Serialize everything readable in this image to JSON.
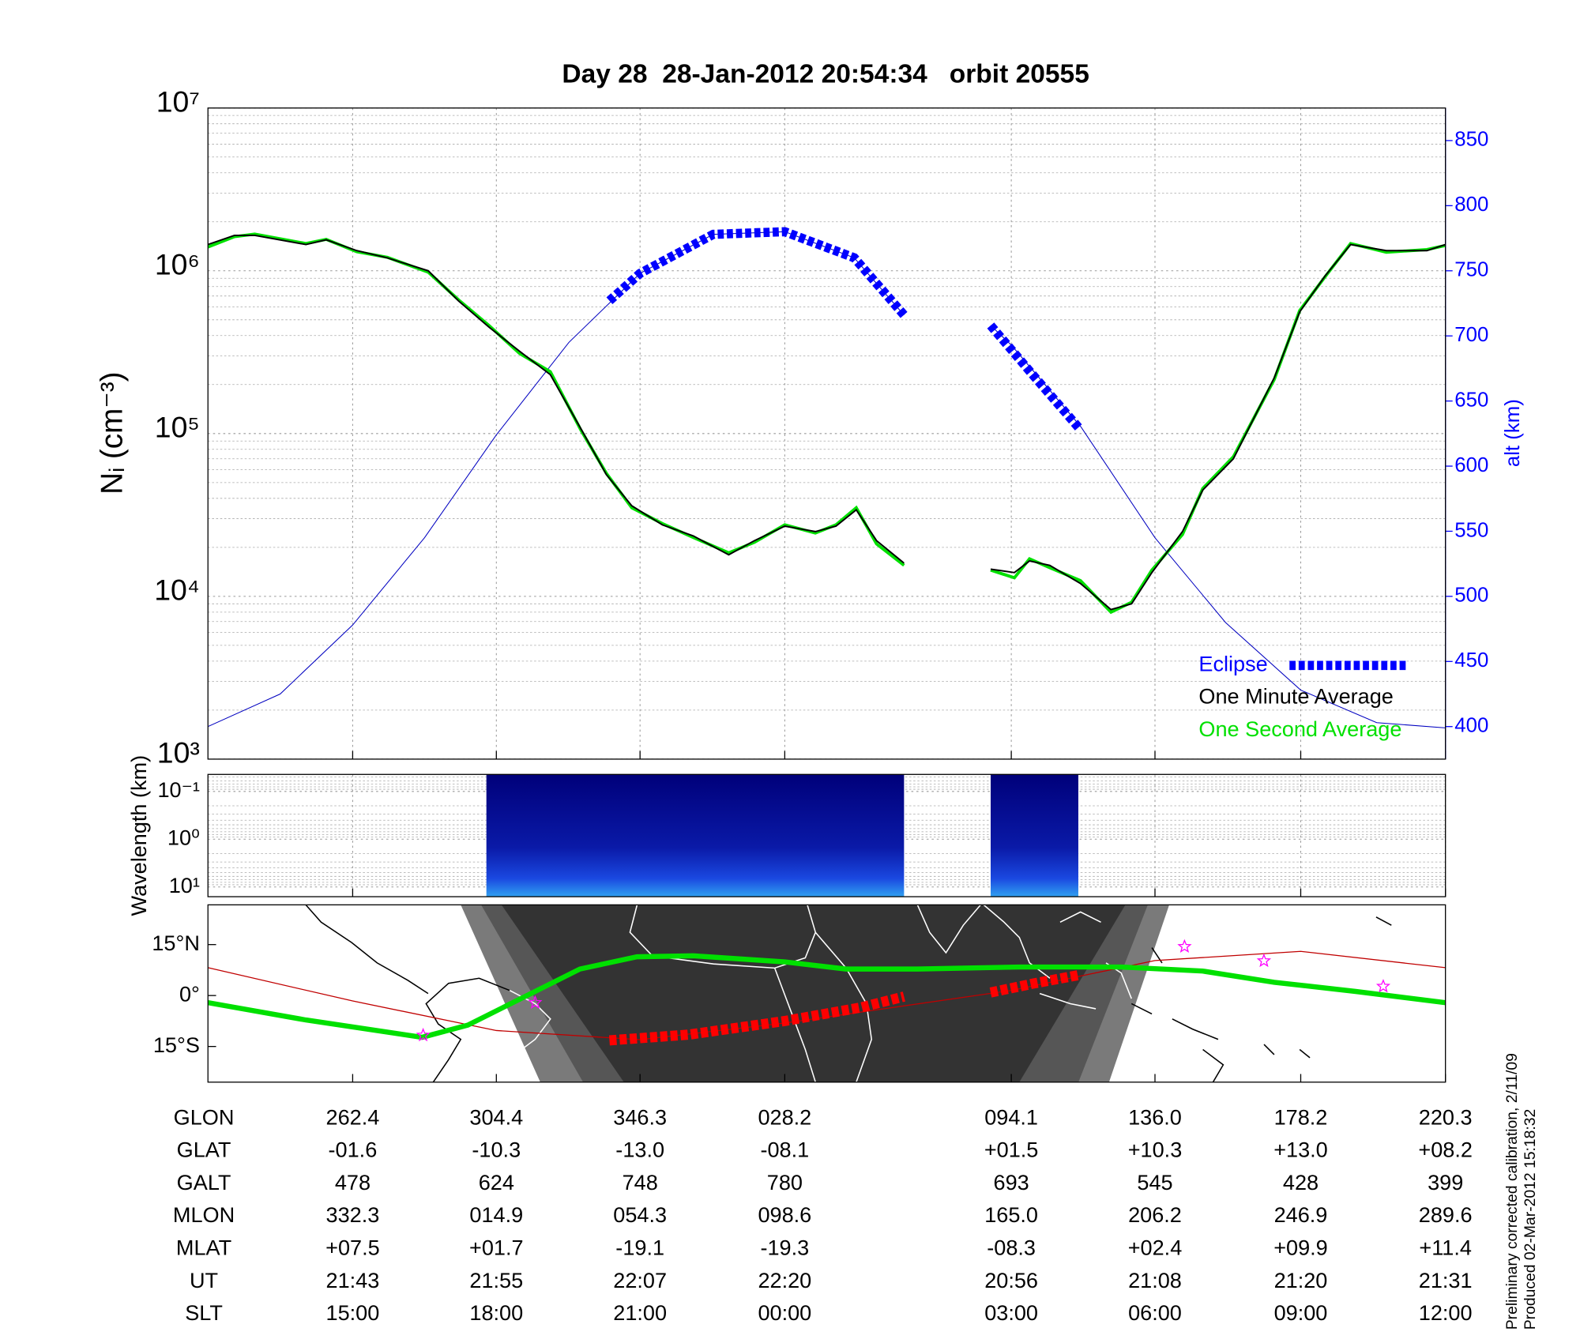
{
  "chart_data": [
    {
      "type": "line",
      "title": "Day 28  28-Jan-2012 20:54:34   orbit 20555",
      "ylabel": "Nᵢ (cm⁻³)",
      "y2label": "alt (km)",
      "xlim": [
        0,
        360
      ],
      "xticks": [
        42.1,
        83.9,
        125.7,
        167.8,
        233.7,
        275.5,
        317.9,
        360
      ],
      "ylim": [
        1000,
        10000000
      ],
      "yscale": "log",
      "yticks": [
        {
          "value": 1000,
          "label": "10³"
        },
        {
          "value": 10000,
          "label": "10⁴"
        },
        {
          "value": 100000,
          "label": "10⁵"
        },
        {
          "value": 1000000,
          "label": "10⁶"
        },
        {
          "value": 10000000,
          "label": "10⁷"
        }
      ],
      "y2lim": [
        375,
        875
      ],
      "y2ticks": [
        400,
        450,
        500,
        550,
        600,
        650,
        700,
        750,
        800,
        850
      ],
      "y2color": "#0000ff",
      "grid": true,
      "legend": "lower right",
      "series": [
        {
          "name": "Eclipse",
          "color": "#0000ff",
          "axis": "y2",
          "style": "dashed",
          "x": [
            116.8,
            125.7,
            147,
            167.8,
            188,
            202.5,
            215,
            227.7,
            240,
            253.8
          ],
          "values": [
            727,
            748,
            778,
            780,
            760,
            716,
            null,
            708,
            670,
            628
          ]
        },
        {
          "name": "One Minute Average",
          "color": "#000000",
          "x": [
            0,
            7.7,
            13.6,
            28.5,
            34.4,
            43.3,
            52.2,
            64.1,
            73,
            81.8,
            90.7,
            99.6,
            108.5,
            115.9,
            123.3,
            132.2,
            141.2,
            151.5,
            159,
            167.8,
            176.7,
            182.7,
            188.6,
            194.5,
            202.5,
            215,
            227.7,
            234.6,
            239,
            244.9,
            253.8,
            262.7,
            268.7,
            274.6,
            283.5,
            289.4,
            298.3,
            310.2,
            317.6,
            325,
            332.4,
            342.8,
            354.6,
            360
          ],
          "values": [
            1450000,
            1650000,
            1650000,
            1450000,
            1550000,
            1330000,
            1200000,
            1000000,
            650000,
            450000,
            320000,
            230000,
            107000,
            56000,
            36000,
            27500,
            23500,
            18000,
            22000,
            27000,
            25000,
            27000,
            34000,
            22000,
            16000,
            null,
            14700,
            14000,
            16500,
            15500,
            12000,
            8300,
            9000,
            14000,
            25000,
            45000,
            70000,
            220000,
            560000,
            930000,
            1450000,
            1330000,
            1330000,
            1450000
          ]
        },
        {
          "name": "One Second Average",
          "color": "#00e000",
          "x": [
            0,
            7.7,
            13.6,
            28.5,
            34.4,
            43.3,
            52.2,
            64.1,
            73,
            81.8,
            90.7,
            99.6,
            108.5,
            115.9,
            123.3,
            132.2,
            141.2,
            151.5,
            159,
            167.8,
            176.7,
            182.7,
            188.6,
            194.5,
            202.5,
            215,
            227.7,
            234.6,
            239,
            244.9,
            253.8,
            262.7,
            268.7,
            274.6,
            283.5,
            289.4,
            298.3,
            310.2,
            317.6,
            325,
            332.4,
            342.8,
            354.6,
            360
          ],
          "values": [
            1400000,
            1620000,
            1680000,
            1470000,
            1560000,
            1310000,
            1210000,
            980000,
            660000,
            460000,
            310000,
            240000,
            105000,
            57000,
            35000,
            28000,
            23000,
            18500,
            21500,
            27500,
            24500,
            27500,
            35000,
            21000,
            15500,
            null,
            14500,
            13000,
            17000,
            15000,
            12500,
            8000,
            9200,
            14500,
            24000,
            46000,
            72000,
            215000,
            570000,
            920000,
            1470000,
            1300000,
            1350000,
            1430000
          ]
        },
        {
          "color": "#0000c0",
          "axis": "y2",
          "x": [
            0,
            21,
            42.1,
            63,
            83.9,
            105,
            125.7,
            147,
            167.8,
            188,
            202.5,
            215,
            227.7,
            233.7,
            254,
            275.5,
            296,
            317.9,
            340,
            360
          ],
          "values": [
            400,
            425,
            478,
            545,
            624,
            695,
            748,
            778,
            780,
            760,
            716,
            null,
            708,
            693,
            630,
            545,
            480,
            428,
            403,
            399
          ]
        }
      ]
    },
    {
      "type": "heatmap",
      "ylabel": "Wavelength (km)",
      "xlim": [
        0,
        360
      ],
      "xticks": [
        42.1,
        83.9,
        125.7,
        167.8,
        233.7,
        275.5,
        317.9,
        360
      ],
      "ylim": [
        0.044,
        16
      ],
      "yscale": "log",
      "yreverse": true,
      "yticks": [
        {
          "value": 0.1,
          "label": "10⁻¹"
        },
        {
          "value": 1,
          "label": "10⁰"
        },
        {
          "value": 10,
          "label": "10¹"
        }
      ],
      "grid": true,
      "segments": [
        [
          81,
          202.5
        ],
        [
          227.7,
          253.2
        ]
      ]
    },
    {
      "type": "map",
      "xlim": [
        0,
        360
      ],
      "xticks": [
        42.1,
        83.9,
        125.7,
        167.8,
        233.7,
        275.5,
        317.9,
        360
      ],
      "ylim": [
        -25.5,
        26.7
      ],
      "yticks": [
        {
          "value": 15,
          "label": "15°N"
        },
        {
          "value": 0,
          "label": "0°"
        },
        {
          "value": -15,
          "label": "15°S"
        }
      ],
      "series": [
        {
          "color": "#c00000",
          "x": [
            0,
            42.1,
            83.9,
            125.7,
            167.8,
            233.7,
            275.5,
            317.9,
            360
          ],
          "values": [
            8.2,
            -1.6,
            -10.3,
            -13.0,
            -8.1,
            1.5,
            10.3,
            13.0,
            8.2
          ]
        },
        {
          "color": "#00e000",
          "width": 5,
          "x": [
            0,
            28.5,
            62.3,
            75.6,
            93.4,
            108.2,
            124.8,
            141.2,
            167.8,
            185.6,
            206.4,
            236.1,
            265.7,
            289.4,
            310.2,
            333.9,
            360
          ],
          "values": [
            -2.1,
            -7.2,
            -12.3,
            -8.7,
            0.3,
            7.8,
            11.4,
            11.7,
            9.9,
            7.8,
            7.8,
            8.4,
            8.4,
            7.2,
            3.9,
            1.2,
            -2.1
          ]
        },
        {
          "color": "#ff0000",
          "style": "dashed",
          "x": [
            116.8,
            140,
            167.8,
            190,
            202.5,
            215,
            227.7,
            240,
            253.2
          ],
          "values": [
            -13.2,
            -11.5,
            -7.5,
            -3.5,
            -0.3,
            null,
            0.9,
            3.5,
            6
          ]
        }
      ],
      "stars": {
        "color": "#ff00ff",
        "x": [
          62.6,
          95.2,
          284.1,
          307.2,
          341.9
        ],
        "values": [
          -11.7,
          -2.1,
          14.4,
          10.2,
          2.7
        ]
      }
    }
  ],
  "table": {
    "rows": [
      {
        "name": "GLON",
        "values": [
          "262.4",
          "304.4",
          "346.3",
          "028.2",
          "094.1",
          "136.0",
          "178.2",
          "220.3"
        ]
      },
      {
        "name": "GLAT",
        "values": [
          "-01.6",
          "-10.3",
          "-13.0",
          "-08.1",
          "+01.5",
          "+10.3",
          "+13.0",
          "+08.2"
        ]
      },
      {
        "name": "GALT",
        "values": [
          "478",
          "624",
          "748",
          "780",
          "693",
          "545",
          "428",
          "399"
        ]
      },
      {
        "name": "MLON",
        "values": [
          "332.3",
          "014.9",
          "054.3",
          "098.6",
          "165.0",
          "206.2",
          "246.9",
          "289.6"
        ]
      },
      {
        "name": "MLAT",
        "values": [
          "+07.5",
          "+01.7",
          "-19.1",
          "-19.3",
          "-08.3",
          "+02.4",
          "+09.9",
          "+11.4"
        ]
      },
      {
        "name": "UT",
        "values": [
          "21:43",
          "21:55",
          "22:07",
          "22:20",
          "20:56",
          "21:08",
          "21:20",
          "21:31"
        ]
      },
      {
        "name": "SLT",
        "values": [
          "15:00",
          "18:00",
          "21:00",
          "00:00",
          "03:00",
          "06:00",
          "09:00",
          "12:00"
        ]
      }
    ]
  },
  "notes": [
    "Preliminary corrected calibration, 2/11/09",
    "Produced 02-Mar-2012 15:18:32"
  ]
}
